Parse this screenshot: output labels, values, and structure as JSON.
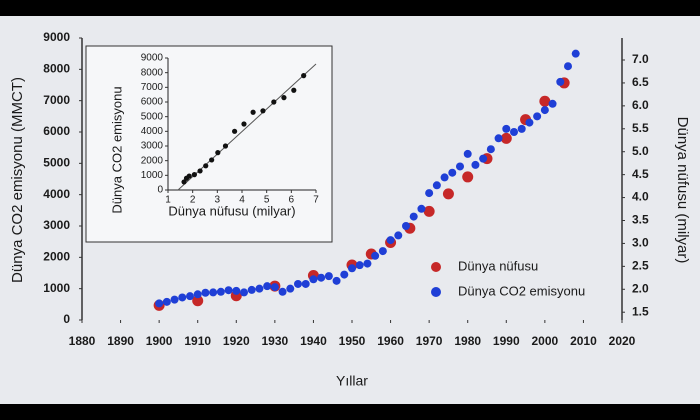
{
  "chart_data": [
    {
      "type": "scatter",
      "x_label": "Yıllar",
      "y_label": "Dünya CO2 emisyonu (MMCT)",
      "y2_label": "Dünya nüfusu (milyar)",
      "xlim": [
        1880,
        2020
      ],
      "xticks": [
        1880,
        1890,
        1900,
        1910,
        1920,
        1930,
        1940,
        1950,
        1960,
        1970,
        1980,
        1990,
        2000,
        2010,
        2020
      ],
      "ylim": [
        0,
        9000
      ],
      "yticks": [
        0,
        1000,
        2000,
        3000,
        4000,
        5000,
        6000,
        7000,
        8000,
        9000
      ],
      "y2lim": [
        1.33,
        7.48
      ],
      "y2ticks": [
        1.5,
        {
          "value": 2,
          "label": "2.0"
        },
        2.5,
        {
          "value": 3,
          "label": "3.0"
        },
        3.5,
        {
          "value": 4,
          "label": "4.0"
        },
        4.5,
        {
          "value": 5,
          "label": "5.0"
        },
        5.5,
        {
          "value": 6,
          "label": "6.0"
        },
        6.5,
        {
          "value": 7,
          "label": "7.0"
        }
      ],
      "series": [
        {
          "name": "Dünya nüfusu",
          "color": "#c62828",
          "axis": "y2",
          "x": [
            1900,
            1910,
            1920,
            1930,
            1940,
            1950,
            1955,
            1960,
            1965,
            1970,
            1975,
            1980,
            1985,
            1990,
            1995,
            2000,
            2005
          ],
          "values": [
            1.65,
            1.75,
            1.86,
            2.07,
            2.3,
            2.53,
            2.77,
            3.02,
            3.33,
            3.7,
            4.08,
            4.45,
            4.85,
            5.29,
            5.7,
            6.1,
            6.5
          ]
        },
        {
          "name": "Dünya CO2 emisyonu",
          "color": "#1f3fd6",
          "x": [
            1900,
            1902,
            1904,
            1906,
            1908,
            1910,
            1912,
            1914,
            1916,
            1918,
            1920,
            1922,
            1924,
            1926,
            1928,
            1930,
            1932,
            1934,
            1936,
            1938,
            1940,
            1942,
            1944,
            1946,
            1948,
            1950,
            1952,
            1954,
            1956,
            1958,
            1960,
            1962,
            1964,
            1966,
            1968,
            1970,
            1972,
            1974,
            1976,
            1978,
            1980,
            1982,
            1984,
            1986,
            1988,
            1990,
            1992,
            1994,
            1996,
            1998,
            2000,
            2002,
            2004,
            2006,
            2008
          ],
          "values": [
            530,
            580,
            650,
            720,
            760,
            820,
            870,
            880,
            900,
            950,
            930,
            880,
            960,
            1000,
            1080,
            1050,
            900,
            1000,
            1150,
            1150,
            1300,
            1350,
            1400,
            1250,
            1450,
            1650,
            1750,
            1800,
            2050,
            2200,
            2550,
            2700,
            3000,
            3300,
            3550,
            4050,
            4300,
            4550,
            4700,
            4900,
            5300,
            4950,
            5150,
            5450,
            5800,
            6100,
            6000,
            6100,
            6300,
            6500,
            6700,
            6900,
            7600,
            8100,
            8500
          ]
        }
      ]
    },
    {
      "type": "scatter",
      "x_label": "Dünya nüfusu (milyar)",
      "y_label": "Dünya CO2 emisyonu",
      "xlim": [
        1,
        7
      ],
      "xticks": [
        1,
        2,
        3,
        4,
        5,
        6,
        7
      ],
      "ylim": [
        0,
        9000
      ],
      "yticks": [
        0,
        1000,
        2000,
        3000,
        4000,
        5000,
        6000,
        7000,
        8000,
        9000
      ],
      "series": [
        {
          "color": "#111111",
          "x": [
            1.65,
            1.75,
            1.86,
            2.07,
            2.3,
            2.53,
            2.77,
            3.02,
            3.33,
            3.7,
            4.08,
            4.45,
            4.85,
            5.29,
            5.7,
            6.1,
            6.5
          ],
          "values": [
            550,
            800,
            950,
            1050,
            1300,
            1650,
            2050,
            2550,
            3000,
            4000,
            4500,
            5300,
            5400,
            6000,
            6300,
            6800,
            7800
          ]
        }
      ]
    }
  ]
}
